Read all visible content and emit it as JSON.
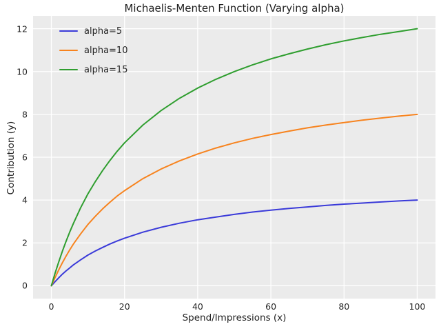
{
  "figure": {
    "bg_color": "#ffffff",
    "axes_bg_color": "#ebebeb",
    "grid_color": "#ffffff",
    "text_color": "#262626",
    "line_width": 2
  },
  "chart_data": {
    "type": "line",
    "title": "Michaelis-Menten Function (Varying alpha)",
    "xlabel": "Spend/Impressions (x)",
    "ylabel": "Contribution (y)",
    "xlim": [
      -5,
      105
    ],
    "ylim": [
      -0.6,
      12.6
    ],
    "x_ticks": [
      0,
      20,
      40,
      60,
      80,
      100
    ],
    "y_ticks": [
      0,
      2,
      4,
      6,
      8,
      10,
      12
    ],
    "grid": true,
    "legend_position": "upper left",
    "function": "y = alpha * x / (25 + x)",
    "x": [
      0,
      1,
      2,
      3,
      4,
      5,
      6,
      8,
      10,
      12,
      14,
      16,
      18,
      20,
      25,
      30,
      35,
      40,
      45,
      50,
      55,
      60,
      65,
      70,
      75,
      80,
      85,
      90,
      95,
      100
    ],
    "series": [
      {
        "name": "alpha=5",
        "color": "#3a3ad9",
        "values": [
          0,
          0.19,
          0.37,
          0.54,
          0.69,
          0.83,
          0.97,
          1.21,
          1.43,
          1.62,
          1.79,
          1.95,
          2.09,
          2.22,
          2.5,
          2.73,
          2.92,
          3.08,
          3.21,
          3.33,
          3.44,
          3.53,
          3.61,
          3.68,
          3.75,
          3.81,
          3.86,
          3.91,
          3.96,
          4.0
        ]
      },
      {
        "name": "alpha=10",
        "color": "#f7831e",
        "values": [
          0,
          0.38,
          0.74,
          1.07,
          1.38,
          1.67,
          1.94,
          2.42,
          2.86,
          3.24,
          3.59,
          3.9,
          4.19,
          4.44,
          5.0,
          5.45,
          5.83,
          6.15,
          6.43,
          6.67,
          6.88,
          7.06,
          7.22,
          7.37,
          7.5,
          7.62,
          7.73,
          7.83,
          7.92,
          8.0
        ]
      },
      {
        "name": "alpha=15",
        "color": "#2f9e2f",
        "values": [
          0,
          0.58,
          1.11,
          1.61,
          2.07,
          2.5,
          2.9,
          3.64,
          4.29,
          4.86,
          5.38,
          5.85,
          6.28,
          6.67,
          7.5,
          8.18,
          8.75,
          9.23,
          9.64,
          10.0,
          10.31,
          10.59,
          10.83,
          11.05,
          11.25,
          11.43,
          11.59,
          11.74,
          11.87,
          12.0
        ]
      }
    ]
  }
}
